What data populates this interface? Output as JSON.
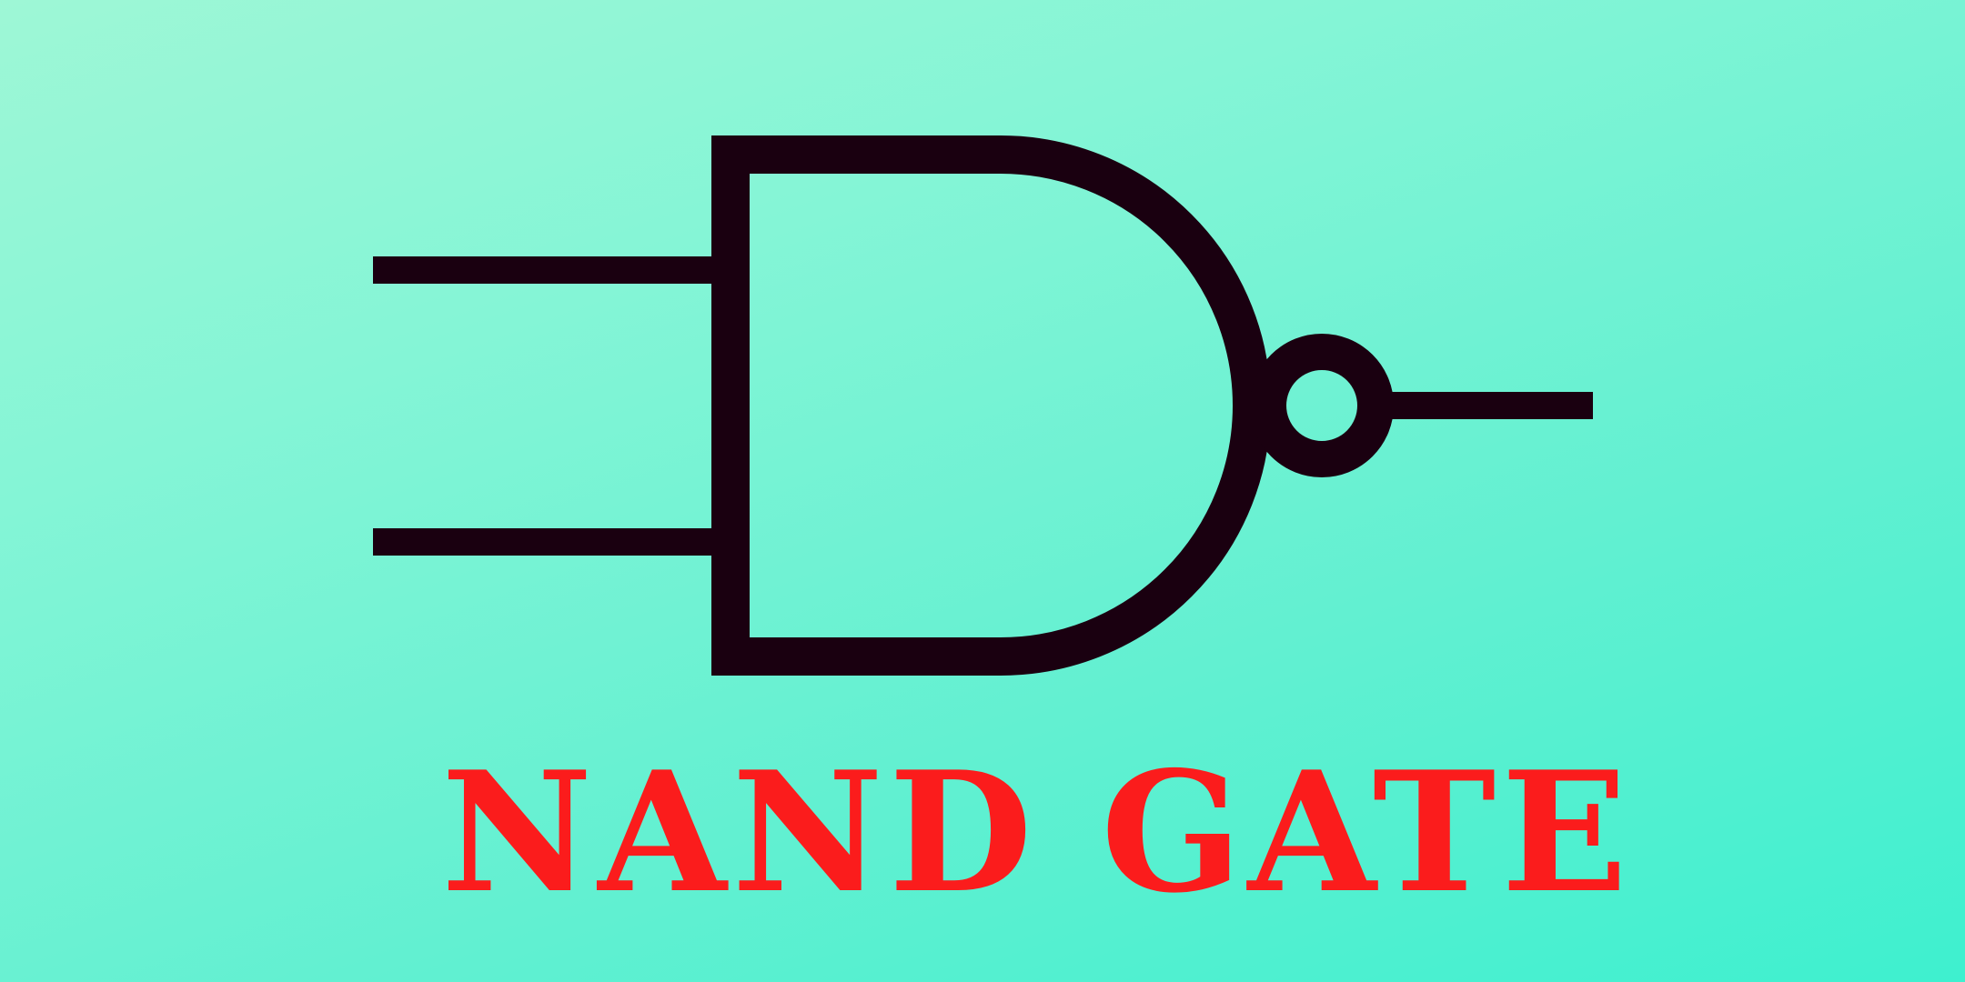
{
  "title": "NAND GATE",
  "colors": {
    "background_start": "#9ef7d6",
    "background_end": "#3ef0cf",
    "symbol_stroke": "#1a0010",
    "title_text": "#fb1c1c"
  },
  "symbol": {
    "type": "nand-gate",
    "inputs": 2,
    "outputs": 1,
    "has_inversion_bubble": true
  }
}
